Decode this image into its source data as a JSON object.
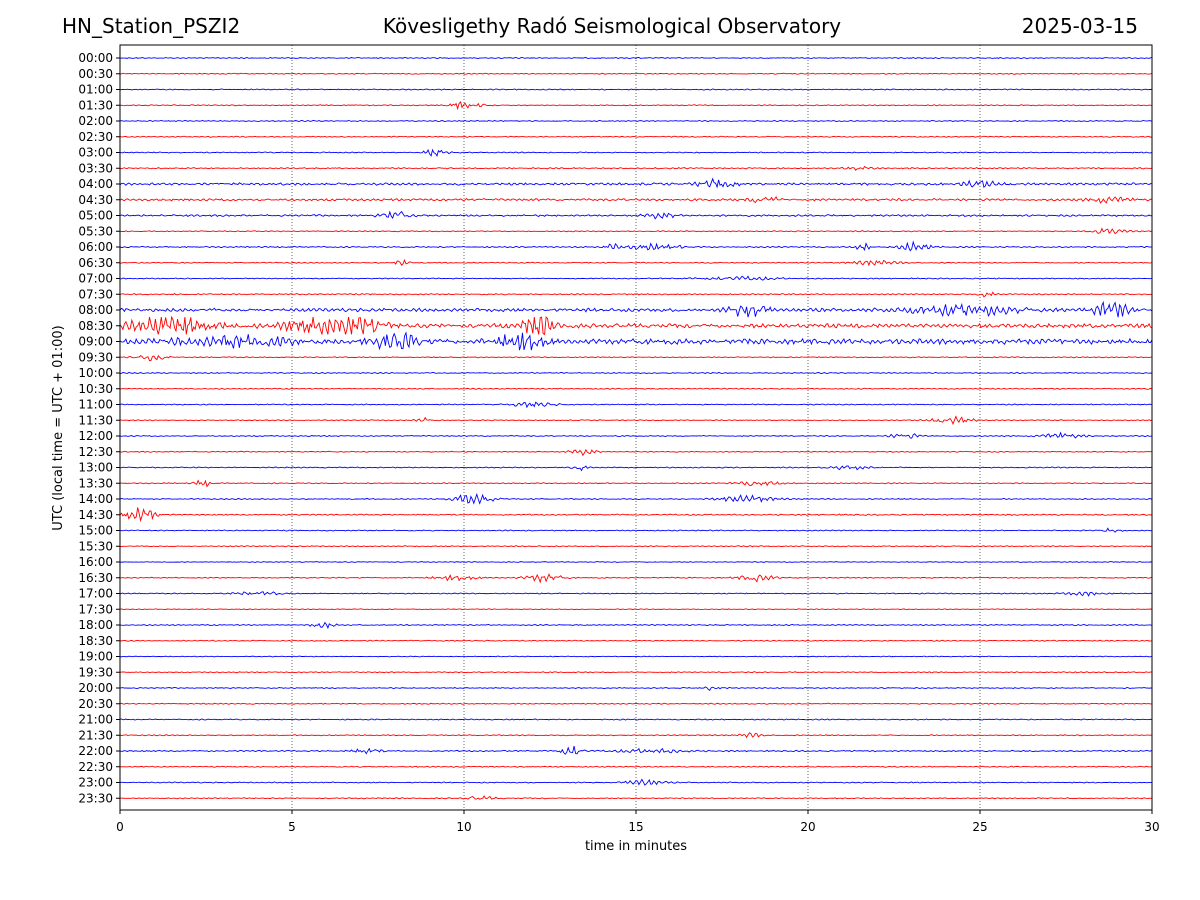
{
  "header": {
    "station": "HN_Station_PSZI2",
    "observatory": "Kövesligethy Radó Seismological Observatory",
    "date": "2025-03-15"
  },
  "chart_data": {
    "type": "line",
    "title": "Kövesligethy Radó Seismological Observatory",
    "xlabel": "time in minutes",
    "ylabel": "UTC (local time = UTC + 01:00)",
    "xlim": [
      0,
      30
    ],
    "xticks": [
      0,
      5,
      10,
      15,
      20,
      25,
      30
    ],
    "grid_x": true,
    "colors": {
      "even_row": "#0000ff",
      "odd_row": "#ff0000"
    },
    "rows": [
      {
        "label": "00:00",
        "amplitude": 0.4,
        "events": []
      },
      {
        "label": "00:30",
        "amplitude": 0.4,
        "events": []
      },
      {
        "label": "01:00",
        "amplitude": 0.4,
        "events": []
      },
      {
        "label": "01:30",
        "amplitude": 0.4,
        "events": [
          {
            "t": 10.0,
            "a": 2.5,
            "w": 0.5
          }
        ]
      },
      {
        "label": "02:00",
        "amplitude": 0.4,
        "events": []
      },
      {
        "label": "02:30",
        "amplitude": 0.4,
        "events": []
      },
      {
        "label": "03:00",
        "amplitude": 0.4,
        "events": [
          {
            "t": 9.1,
            "a": 4.0,
            "w": 0.3
          }
        ]
      },
      {
        "label": "03:30",
        "amplitude": 0.5,
        "events": [
          {
            "t": 21.5,
            "a": 2.0,
            "w": 0.3
          }
        ]
      },
      {
        "label": "04:00",
        "amplitude": 0.9,
        "events": [
          {
            "t": 17.3,
            "a": 3.0,
            "w": 0.5
          },
          {
            "t": 25.0,
            "a": 2.5,
            "w": 0.5
          }
        ]
      },
      {
        "label": "04:30",
        "amplitude": 0.9,
        "events": [
          {
            "t": 18.7,
            "a": 3.0,
            "w": 0.4
          },
          {
            "t": 28.8,
            "a": 3.0,
            "w": 0.5
          }
        ]
      },
      {
        "label": "05:00",
        "amplitude": 0.7,
        "events": [
          {
            "t": 8.0,
            "a": 3.0,
            "w": 0.4
          },
          {
            "t": 15.8,
            "a": 2.5,
            "w": 0.5
          }
        ]
      },
      {
        "label": "05:30",
        "amplitude": 0.4,
        "events": [
          {
            "t": 28.7,
            "a": 2.0,
            "w": 0.5
          }
        ]
      },
      {
        "label": "06:00",
        "amplitude": 0.5,
        "events": [
          {
            "t": 14.3,
            "a": 2.0,
            "w": 0.2
          },
          {
            "t": 15.5,
            "a": 2.0,
            "w": 0.8
          },
          {
            "t": 21.6,
            "a": 3.0,
            "w": 0.2
          },
          {
            "t": 23.1,
            "a": 3.5,
            "w": 0.4
          }
        ]
      },
      {
        "label": "06:30",
        "amplitude": 0.4,
        "events": [
          {
            "t": 8.2,
            "a": 3.0,
            "w": 0.2
          },
          {
            "t": 22.0,
            "a": 2.0,
            "w": 0.6
          }
        ]
      },
      {
        "label": "07:00",
        "amplitude": 0.4,
        "events": [
          {
            "t": 18.0,
            "a": 1.5,
            "w": 1.0
          }
        ]
      },
      {
        "label": "07:30",
        "amplitude": 0.5,
        "events": [
          {
            "t": 25.2,
            "a": 3.0,
            "w": 0.2
          }
        ]
      },
      {
        "label": "08:00",
        "amplitude": 1.3,
        "events": [
          {
            "t": 18.3,
            "a": 6.0,
            "w": 0.5
          },
          {
            "t": 24.5,
            "a": 4.0,
            "w": 1.5
          },
          {
            "t": 28.8,
            "a": 6.0,
            "w": 0.5
          }
        ]
      },
      {
        "label": "08:30",
        "amplitude": 1.6,
        "events": [
          {
            "t": 1.5,
            "a": 8.0,
            "w": 1.2
          },
          {
            "t": 5.3,
            "a": 7.0,
            "w": 0.8
          },
          {
            "t": 6.8,
            "a": 6.0,
            "w": 0.8
          },
          {
            "t": 12.2,
            "a": 8.0,
            "w": 0.5
          }
        ]
      },
      {
        "label": "09:00",
        "amplitude": 2.0,
        "events": [
          {
            "t": 8.0,
            "a": 7.0,
            "w": 0.6
          },
          {
            "t": 11.7,
            "a": 8.0,
            "w": 0.6
          },
          {
            "t": 3.5,
            "a": 4.0,
            "w": 1.5
          }
        ]
      },
      {
        "label": "09:30",
        "amplitude": 0.4,
        "events": [
          {
            "t": 0.9,
            "a": 3.0,
            "w": 0.4
          }
        ]
      },
      {
        "label": "10:00",
        "amplitude": 0.4,
        "events": []
      },
      {
        "label": "10:30",
        "amplitude": 0.4,
        "events": []
      },
      {
        "label": "11:00",
        "amplitude": 0.4,
        "events": [
          {
            "t": 12.0,
            "a": 2.0,
            "w": 0.6
          }
        ]
      },
      {
        "label": "11:30",
        "amplitude": 0.4,
        "events": [
          {
            "t": 8.9,
            "a": 2.0,
            "w": 0.3
          },
          {
            "t": 24.2,
            "a": 2.5,
            "w": 0.6
          }
        ]
      },
      {
        "label": "12:00",
        "amplitude": 0.4,
        "events": [
          {
            "t": 22.8,
            "a": 2.5,
            "w": 0.4
          },
          {
            "t": 27.3,
            "a": 2.5,
            "w": 0.6
          }
        ]
      },
      {
        "label": "12:30",
        "amplitude": 0.4,
        "events": [
          {
            "t": 13.5,
            "a": 2.5,
            "w": 0.4
          }
        ]
      },
      {
        "label": "13:00",
        "amplitude": 0.4,
        "events": [
          {
            "t": 13.3,
            "a": 3.5,
            "w": 0.2
          },
          {
            "t": 21.2,
            "a": 1.5,
            "w": 0.5
          }
        ]
      },
      {
        "label": "13:30",
        "amplitude": 0.4,
        "events": [
          {
            "t": 2.4,
            "a": 3.0,
            "w": 0.2
          },
          {
            "t": 18.5,
            "a": 2.0,
            "w": 0.6
          }
        ]
      },
      {
        "label": "14:00",
        "amplitude": 0.4,
        "events": [
          {
            "t": 10.3,
            "a": 5.0,
            "w": 0.5
          },
          {
            "t": 18.2,
            "a": 2.5,
            "w": 0.8
          }
        ]
      },
      {
        "label": "14:30",
        "amplitude": 0.5,
        "events": [
          {
            "t": 0.5,
            "a": 5.5,
            "w": 0.5
          }
        ]
      },
      {
        "label": "15:00",
        "amplitude": 0.4,
        "events": [
          {
            "t": 28.8,
            "a": 1.5,
            "w": 0.3
          }
        ]
      },
      {
        "label": "15:30",
        "amplitude": 0.4,
        "events": []
      },
      {
        "label": "16:00",
        "amplitude": 0.3,
        "events": []
      },
      {
        "label": "16:30",
        "amplitude": 0.4,
        "events": [
          {
            "t": 9.8,
            "a": 2.0,
            "w": 0.6
          },
          {
            "t": 12.3,
            "a": 3.0,
            "w": 0.5
          },
          {
            "t": 18.5,
            "a": 2.5,
            "w": 0.5
          }
        ]
      },
      {
        "label": "17:00",
        "amplitude": 0.4,
        "events": [
          {
            "t": 4.0,
            "a": 1.5,
            "w": 0.6
          },
          {
            "t": 28.0,
            "a": 1.5,
            "w": 0.5
          }
        ]
      },
      {
        "label": "17:30",
        "amplitude": 0.3,
        "events": []
      },
      {
        "label": "18:00",
        "amplitude": 0.4,
        "events": [
          {
            "t": 5.9,
            "a": 2.5,
            "w": 0.3
          }
        ]
      },
      {
        "label": "18:30",
        "amplitude": 0.4,
        "events": []
      },
      {
        "label": "19:00",
        "amplitude": 0.3,
        "events": []
      },
      {
        "label": "19:30",
        "amplitude": 0.4,
        "events": []
      },
      {
        "label": "20:00",
        "amplitude": 0.4,
        "events": [
          {
            "t": 17.2,
            "a": 1.5,
            "w": 0.3
          }
        ]
      },
      {
        "label": "20:30",
        "amplitude": 0.4,
        "events": []
      },
      {
        "label": "21:00",
        "amplitude": 0.4,
        "events": []
      },
      {
        "label": "21:30",
        "amplitude": 0.4,
        "events": [
          {
            "t": 18.3,
            "a": 2.0,
            "w": 0.3
          }
        ]
      },
      {
        "label": "22:00",
        "amplitude": 0.5,
        "events": [
          {
            "t": 7.2,
            "a": 2.0,
            "w": 0.4
          },
          {
            "t": 13.1,
            "a": 4.5,
            "w": 0.3
          },
          {
            "t": 15.5,
            "a": 1.5,
            "w": 1.0
          }
        ]
      },
      {
        "label": "22:30",
        "amplitude": 0.4,
        "events": []
      },
      {
        "label": "23:00",
        "amplitude": 0.4,
        "events": [
          {
            "t": 15.2,
            "a": 2.5,
            "w": 0.5
          }
        ]
      },
      {
        "label": "23:30",
        "amplitude": 0.4,
        "events": [
          {
            "t": 10.5,
            "a": 1.5,
            "w": 0.4
          }
        ]
      }
    ]
  }
}
